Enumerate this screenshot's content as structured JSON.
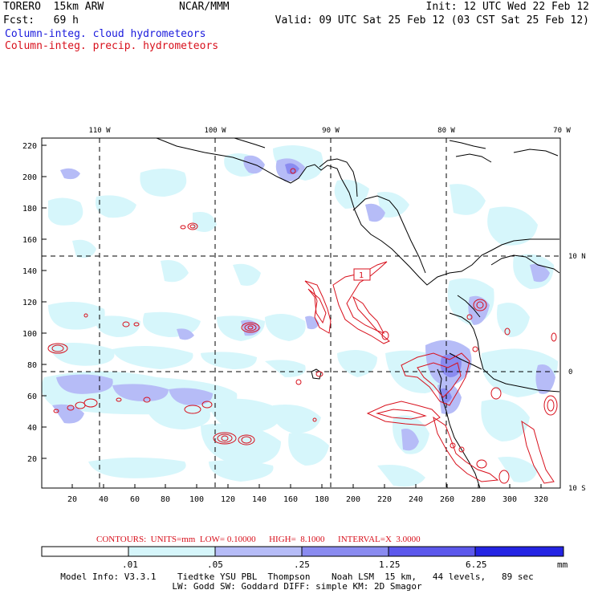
{
  "header": {
    "model": "TORERO  15km ARW",
    "org": "NCAR/MMM",
    "init": "Init: 12 UTC Wed 22 Feb 12",
    "fcst": "Fcst:   69 h",
    "valid": "Valid: 09 UTC Sat 25 Feb 12 (03 CST Sat 25 Feb 12)",
    "field1": "Column-integ. cloud hydrometeors",
    "field2": "Column-integ. precip. hydrometeors",
    "field1_color": "#1a1adc",
    "field2_color": "#d8101c"
  },
  "map": {
    "top_lon_labels": [
      "110 W",
      "100 W",
      "90 W",
      "80 W",
      "70 W"
    ],
    "right_lat_labels": [
      "10 N",
      "0",
      "10 S"
    ],
    "y_ticks": [
      "220",
      "200",
      "180",
      "160",
      "140",
      "120",
      "100",
      "80",
      "60",
      "40",
      "20"
    ],
    "x_ticks": [
      "20",
      "40",
      "60",
      "80",
      "100",
      "120",
      "140",
      "160",
      "180",
      "200",
      "220",
      "240",
      "260",
      "280",
      "300",
      "320"
    ],
    "contour_marker": "1"
  },
  "contours_info": {
    "text": "CONTOURS:  UNITS=mm  LOW= 0.10000      HIGH=  8.1000      INTERVAL=X  3.0000"
  },
  "legend": {
    "labels": [
      ".01",
      ".05",
      ".25",
      "1.25",
      "6.25"
    ],
    "unit": "mm",
    "colors": [
      "#ffffff",
      "#d6f6fb",
      "#b6bcf7",
      "#8a8bf0",
      "#5c58ec",
      "#2424e4"
    ]
  },
  "footer": {
    "line1": "Model Info: V3.3.1    Tiedtke YSU PBL  Thompson    Noah LSM  15 km,   44 levels,   89 sec",
    "line2": "LW: Godd SW: Goddard DIFF: simple KM: 2D Smagor"
  }
}
